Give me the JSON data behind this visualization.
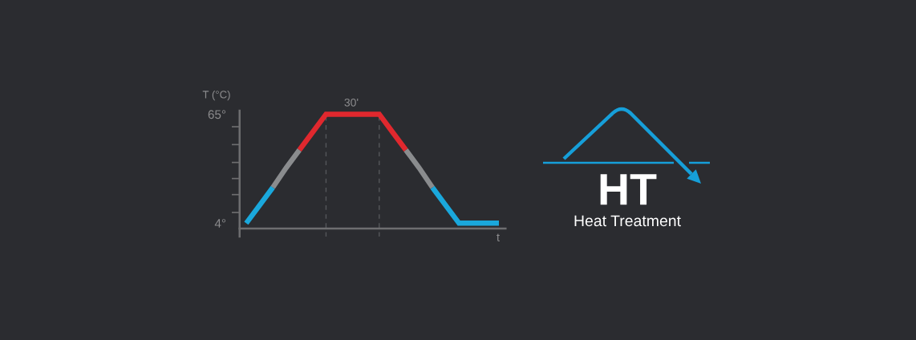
{
  "chart_data": {
    "type": "line",
    "categories": [
      null,
      null,
      null,
      null,
      null,
      null,
      null,
      null,
      null,
      null,
      null,
      null,
      null,
      null,
      null,
      null,
      null,
      null,
      null,
      null
    ],
    "series": [
      {
        "color": "#1aa8dc",
        "values": [
          4,
          14,
          24,
          null,
          null,
          null,
          null,
          null,
          null,
          null,
          null,
          null,
          null,
          null,
          24,
          14,
          4,
          4,
          4,
          4
        ]
      },
      {
        "color": "#8a8c8e",
        "values": [
          null,
          null,
          24,
          35,
          45,
          null,
          null,
          null,
          null,
          null,
          null,
          null,
          45,
          35,
          24,
          null,
          null,
          null,
          null,
          null
        ]
      },
      {
        "color": "#e0282e",
        "values": [
          null,
          null,
          null,
          null,
          45,
          55,
          65,
          65,
          65,
          65,
          65,
          55,
          45,
          null,
          null,
          null,
          null,
          null,
          null,
          null
        ]
      }
    ],
    "ylim": [
      1,
      67
    ],
    "yticks": [
      {
        "value": 4,
        "label": "4°"
      },
      {
        "value": 10,
        "label": null
      },
      {
        "value": 20,
        "label": null
      },
      {
        "value": 29,
        "label": null
      },
      {
        "value": 38,
        "label": null
      },
      {
        "value": 48,
        "label": null
      },
      {
        "value": 58,
        "label": null
      },
      {
        "value": 65,
        "label": "65°"
      }
    ],
    "ylabel": "T (°C)",
    "xlabel": "t",
    "annotations": [
      "30'",
      "HT",
      "Heat Treatment"
    ]
  }
}
